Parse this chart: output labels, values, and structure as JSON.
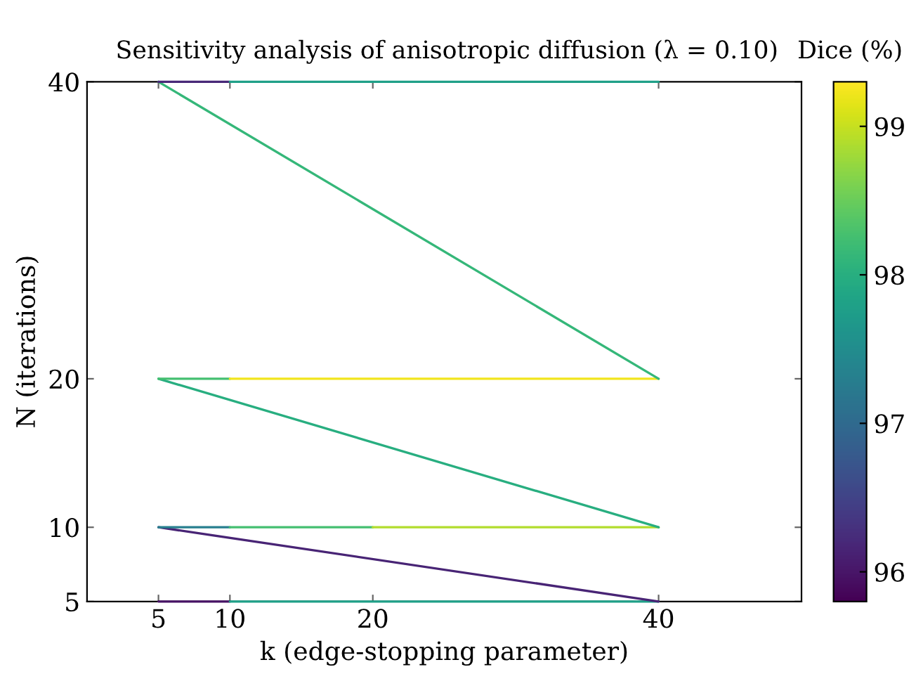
{
  "chart_data": {
    "type": "line",
    "title": "Sensitivity analysis of anisotropic diffusion (λ = 0.10)",
    "xlabel": "k (edge-stopping parameter)",
    "ylabel": "N (iterations)",
    "clabel": "Dice (%)",
    "series": [
      {
        "x": [
          5,
          10
        ],
        "values": [
          5,
          5
        ],
        "color": "#471365"
      },
      {
        "x": [
          10,
          20,
          40
        ],
        "values": [
          5,
          5,
          5
        ],
        "color": "#1fa088"
      },
      {
        "x": [
          40,
          5
        ],
        "values": [
          5,
          10
        ],
        "color": "#482475"
      },
      {
        "x": [
          5,
          10
        ],
        "values": [
          10,
          10
        ],
        "color": "#277f8e"
      },
      {
        "x": [
          10,
          20
        ],
        "values": [
          10,
          10
        ],
        "color": "#44bf70"
      },
      {
        "x": [
          20,
          40
        ],
        "values": [
          10,
          10
        ],
        "color": "#b2dd2d"
      },
      {
        "x": [
          40,
          5
        ],
        "values": [
          10,
          20
        ],
        "color": "#28ae80"
      },
      {
        "x": [
          5,
          10
        ],
        "values": [
          20,
          20
        ],
        "color": "#44bf70"
      },
      {
        "x": [
          10,
          20,
          40
        ],
        "values": [
          20,
          20,
          20
        ],
        "color": "#f1e51d"
      },
      {
        "x": [
          40,
          5
        ],
        "values": [
          20,
          40
        ],
        "color": "#35b779"
      },
      {
        "x": [
          5,
          10
        ],
        "values": [
          40,
          40
        ],
        "color": "#482878"
      },
      {
        "x": [
          10,
          20,
          40
        ],
        "values": [
          40,
          40,
          40
        ],
        "color": "#1fa088"
      }
    ],
    "xlim": [
      0,
      50
    ],
    "ylim": [
      5,
      40
    ],
    "xticks": [
      5,
      10,
      20,
      40
    ],
    "yticks": [
      5,
      10,
      20,
      40
    ],
    "clim": [
      95.8,
      99.3
    ],
    "cticks": [
      96,
      97,
      98,
      99
    ],
    "grid": false
  }
}
